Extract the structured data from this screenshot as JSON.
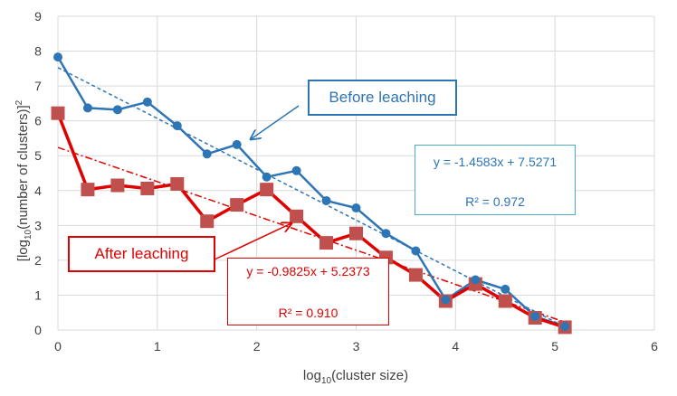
{
  "chart_data": {
    "type": "line",
    "xlabel": "log10(cluster size)",
    "ylabel": "[log10(number of clusters)]²",
    "xlim": [
      0,
      6
    ],
    "ylim": [
      0,
      9
    ],
    "x_ticks": [
      "0",
      "1",
      "2",
      "3",
      "4",
      "5",
      "6"
    ],
    "y_ticks": [
      "0",
      "1",
      "2",
      "3",
      "4",
      "5",
      "6",
      "7",
      "8",
      "9"
    ],
    "grid": true,
    "series": [
      {
        "name": "Before leaching",
        "color": "#2e75b6",
        "marker": "circle",
        "x": [
          0,
          0.3,
          0.6,
          0.9,
          1.2,
          1.5,
          1.8,
          2.1,
          2.4,
          2.7,
          3.0,
          3.3,
          3.6,
          3.9,
          4.2,
          4.5,
          4.8,
          5.1
        ],
        "y": [
          7.83,
          6.37,
          6.32,
          6.54,
          5.86,
          5.05,
          5.32,
          4.39,
          4.57,
          3.71,
          3.5,
          2.77,
          2.27,
          0.87,
          1.44,
          1.17,
          0.39,
          0.1
        ]
      },
      {
        "name": "After leaching",
        "color": "#e00000",
        "marker": "square",
        "x": [
          0,
          0.3,
          0.6,
          0.9,
          1.2,
          1.5,
          1.8,
          2.1,
          2.4,
          2.7,
          3.0,
          3.3,
          3.6,
          3.9,
          4.2,
          4.5,
          4.8,
          5.1
        ],
        "y": [
          6.22,
          4.03,
          4.15,
          4.06,
          4.19,
          3.12,
          3.59,
          4.03,
          3.26,
          2.5,
          2.77,
          2.08,
          1.58,
          0.83,
          1.32,
          0.83,
          0.35,
          0.08
        ]
      }
    ],
    "fits": [
      {
        "series": "Before leaching",
        "slope": -1.4583,
        "intercept": 7.5271,
        "color": "#2e75b6",
        "style": "dashed",
        "equation": "y = -1.4583x + 7.5271",
        "r2": "R² = 0.972"
      },
      {
        "series": "After leaching",
        "slope": -0.9825,
        "intercept": 5.2373,
        "color": "#e00000",
        "style": "dash-dot",
        "equation": "y = -0.9825x + 5.2373",
        "r2": "R² = 0.910"
      }
    ],
    "annotations": {
      "before_label": "Before leaching",
      "after_label": "After leaching"
    }
  }
}
